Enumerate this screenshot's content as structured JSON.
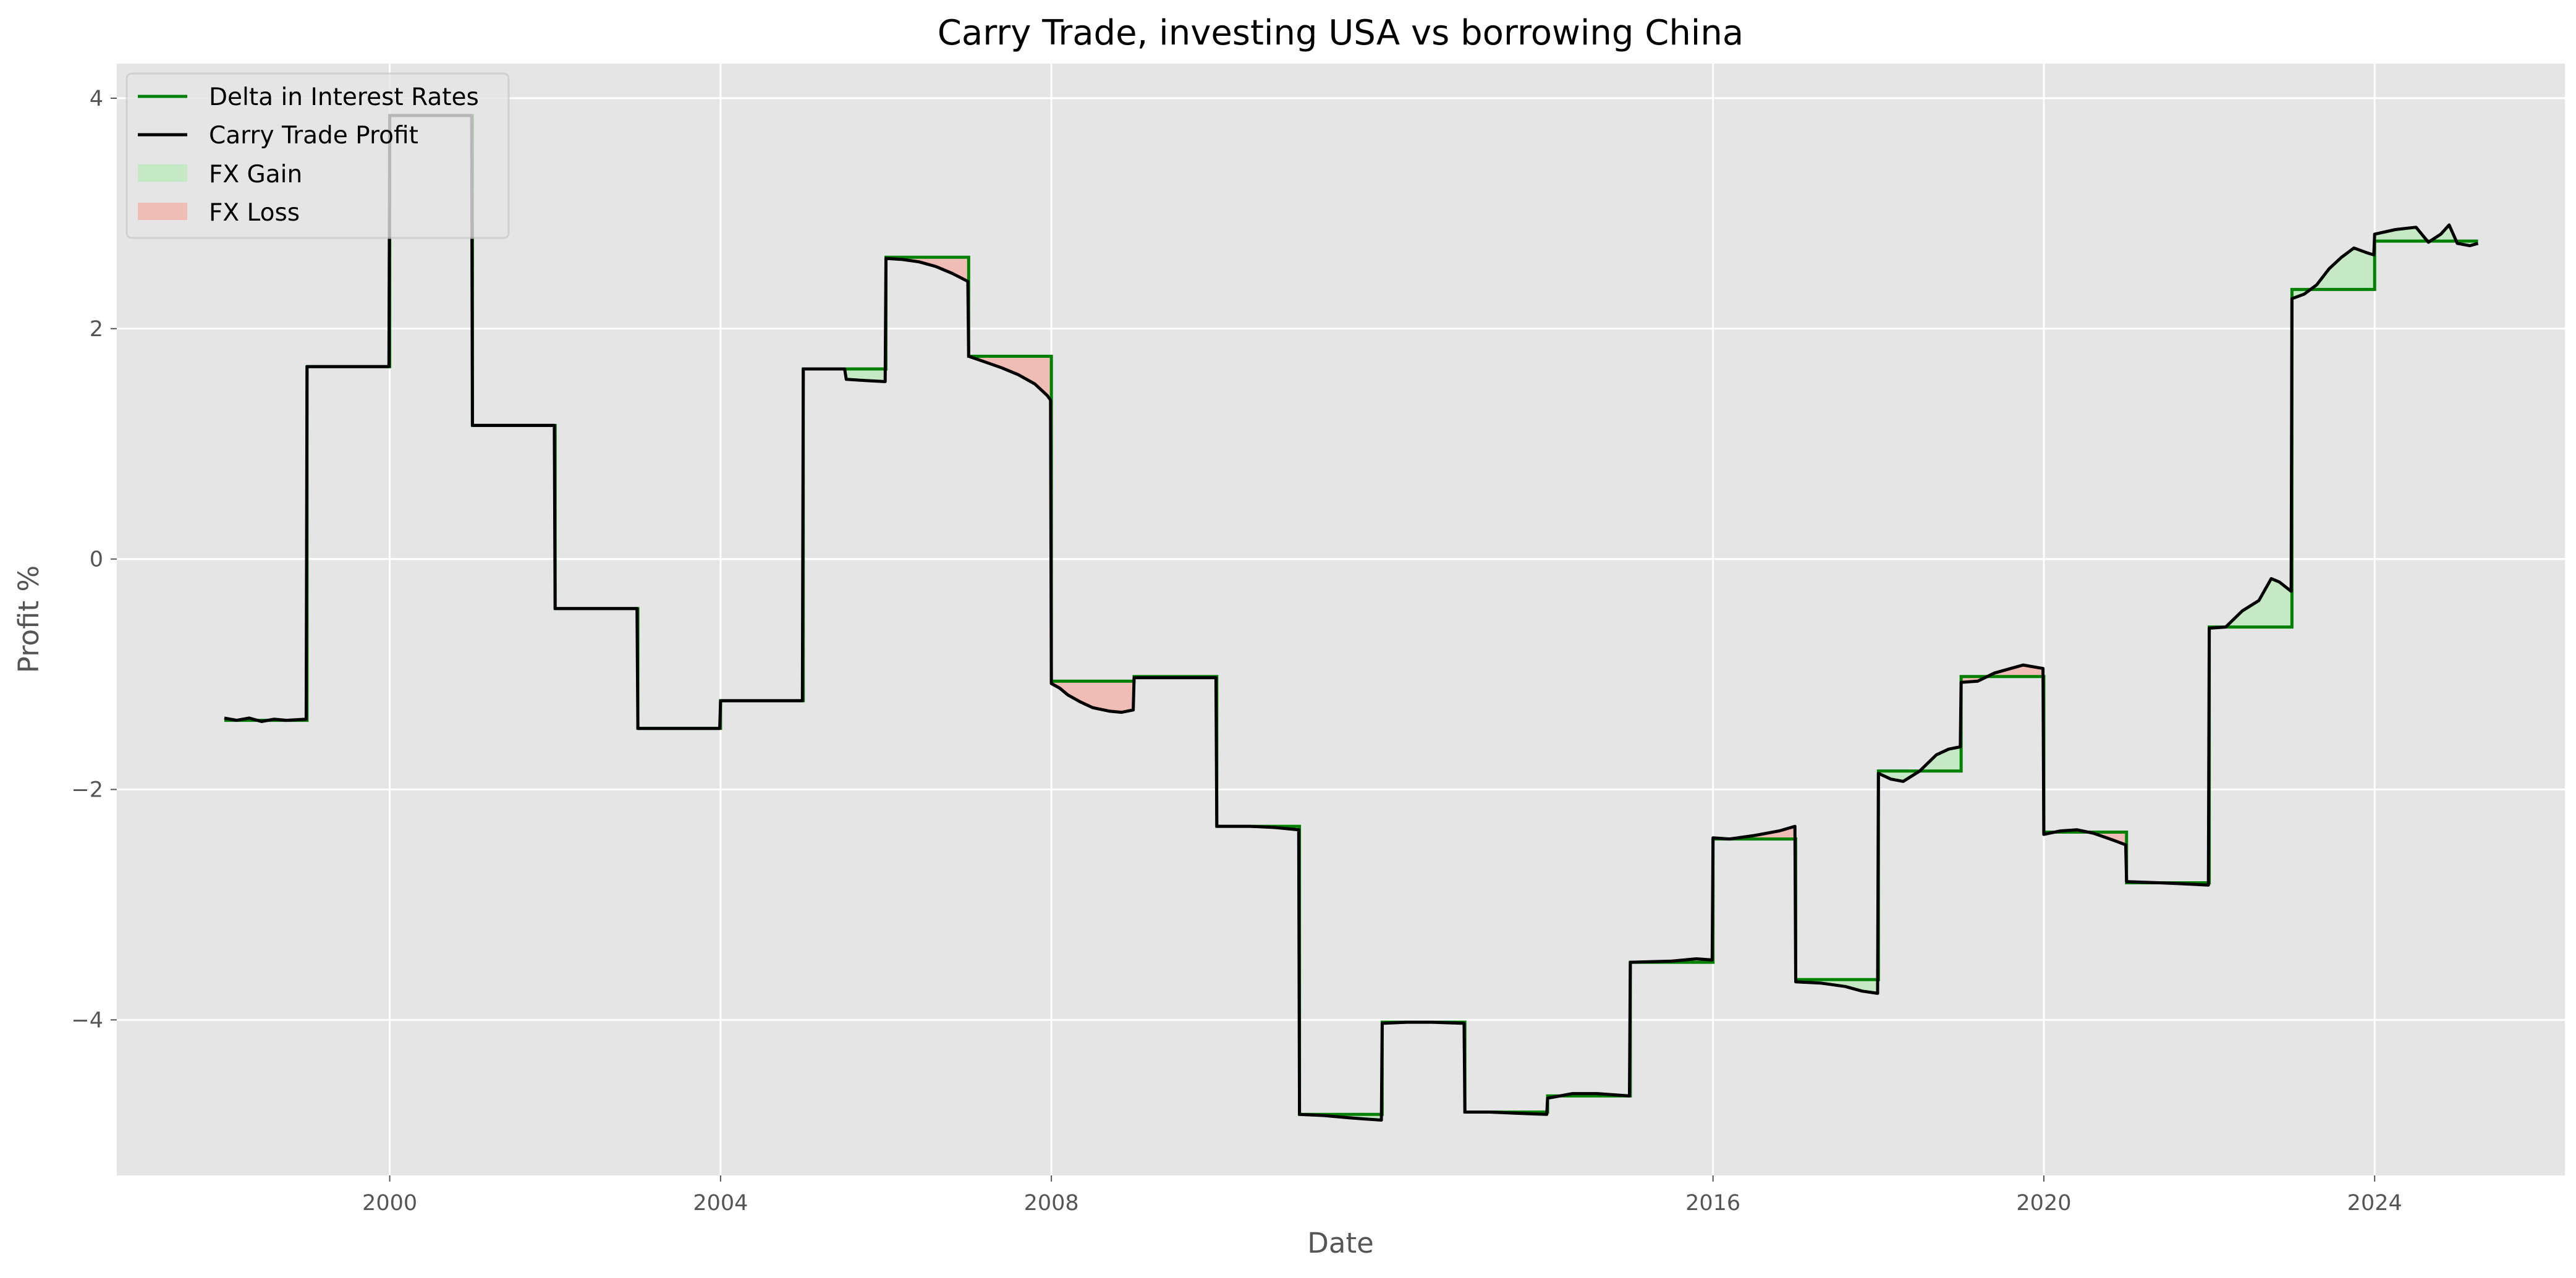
{
  "chart_data": {
    "type": "line",
    "title": "Carry Trade, investing USA vs borrowing China",
    "xlabel": "Date",
    "ylabel": "Profit %",
    "x_ticks": [
      "2000",
      "2004",
      "2008",
      "2016",
      "2020",
      "2024"
    ],
    "x_tick_years": [
      2000,
      2004,
      2008,
      2016,
      2020,
      2024
    ],
    "y_ticks": [
      "4",
      "2",
      "0",
      "−2",
      "−4"
    ],
    "y_tick_values": [
      4,
      2,
      0,
      -2,
      -4
    ],
    "xlim": [
      1996.7,
      2026.3
    ],
    "ylim": [
      -5.35,
      4.3
    ],
    "grid": true,
    "legend_position": "top-left",
    "colors": {
      "background": "#e5e5e5",
      "grid": "#ffffff",
      "delta_line": "#008000",
      "profit_line": "#000000",
      "fx_gain_fill": "#c5e9c5",
      "fx_loss_fill": "#f0bcb6"
    },
    "legend": [
      {
        "label": "Delta in Interest Rates",
        "kind": "line",
        "color_key": "delta_line"
      },
      {
        "label": "Carry Trade Profit",
        "kind": "line",
        "color_key": "profit_line"
      },
      {
        "label": "FX Gain",
        "kind": "patch",
        "color_key": "fx_gain_fill"
      },
      {
        "label": "FX Loss",
        "kind": "patch",
        "color_key": "fx_loss_fill"
      }
    ],
    "series": [
      {
        "name": "Delta in Interest Rates",
        "steps": [
          {
            "start": 1998,
            "end": 1999,
            "value": -1.4
          },
          {
            "start": 1999,
            "end": 2000,
            "value": 1.67
          },
          {
            "start": 2000,
            "end": 2001,
            "value": 3.85
          },
          {
            "start": 2001,
            "end": 2002,
            "value": 1.16
          },
          {
            "start": 2002,
            "end": 2003,
            "value": -0.43
          },
          {
            "start": 2003,
            "end": 2004,
            "value": -1.47
          },
          {
            "start": 2004,
            "end": 2005,
            "value": -1.23
          },
          {
            "start": 2005,
            "end": 2006,
            "value": 1.65
          },
          {
            "start": 2006,
            "end": 2007,
            "value": 2.62
          },
          {
            "start": 2007,
            "end": 2008,
            "value": 1.76
          },
          {
            "start": 2008,
            "end": 2009,
            "value": -1.06
          },
          {
            "start": 2009,
            "end": 2010,
            "value": -1.02
          },
          {
            "start": 2010,
            "end": 2011,
            "value": -2.32
          },
          {
            "start": 2011,
            "end": 2012,
            "value": -4.82
          },
          {
            "start": 2012,
            "end": 2013,
            "value": -4.02
          },
          {
            "start": 2013,
            "end": 2014,
            "value": -4.8
          },
          {
            "start": 2014,
            "end": 2015,
            "value": -4.66
          },
          {
            "start": 2015,
            "end": 2016,
            "value": -3.5
          },
          {
            "start": 2016,
            "end": 2017,
            "value": -2.43
          },
          {
            "start": 2017,
            "end": 2018,
            "value": -3.65
          },
          {
            "start": 2018,
            "end": 2019,
            "value": -1.84
          },
          {
            "start": 2019,
            "end": 2020,
            "value": -1.02
          },
          {
            "start": 2020,
            "end": 2021,
            "value": -2.37
          },
          {
            "start": 2021,
            "end": 2022,
            "value": -2.81
          },
          {
            "start": 2022,
            "end": 2023,
            "value": -0.59
          },
          {
            "start": 2023,
            "end": 2024,
            "value": 2.34
          },
          {
            "start": 2024,
            "end": 2025.25,
            "value": 2.76
          }
        ]
      },
      {
        "name": "Carry Trade Profit",
        "points": [
          [
            1998.0,
            -1.38
          ],
          [
            1998.15,
            -1.4
          ],
          [
            1998.3,
            -1.38
          ],
          [
            1998.45,
            -1.41
          ],
          [
            1998.6,
            -1.39
          ],
          [
            1998.75,
            -1.4
          ],
          [
            1998.99,
            -1.39
          ],
          [
            1999.0,
            1.67
          ],
          [
            1999.99,
            1.67
          ],
          [
            2000.0,
            3.85
          ],
          [
            2000.99,
            3.85
          ],
          [
            2001.0,
            1.16
          ],
          [
            2001.99,
            1.16
          ],
          [
            2002.0,
            -0.43
          ],
          [
            2002.99,
            -0.43
          ],
          [
            2003.0,
            -1.47
          ],
          [
            2003.99,
            -1.47
          ],
          [
            2004.0,
            -1.23
          ],
          [
            2004.99,
            -1.23
          ],
          [
            2005.0,
            1.65
          ],
          [
            2005.5,
            1.65
          ],
          [
            2005.52,
            1.56
          ],
          [
            2005.75,
            1.55
          ],
          [
            2005.99,
            1.54
          ],
          [
            2006.0,
            2.61
          ],
          [
            2006.2,
            2.6
          ],
          [
            2006.4,
            2.58
          ],
          [
            2006.6,
            2.54
          ],
          [
            2006.8,
            2.48
          ],
          [
            2006.99,
            2.41
          ],
          [
            2007.0,
            1.76
          ],
          [
            2007.2,
            1.71
          ],
          [
            2007.4,
            1.66
          ],
          [
            2007.6,
            1.6
          ],
          [
            2007.8,
            1.52
          ],
          [
            2007.95,
            1.42
          ],
          [
            2007.99,
            1.38
          ],
          [
            2008.0,
            -1.08
          ],
          [
            2008.1,
            -1.12
          ],
          [
            2008.2,
            -1.18
          ],
          [
            2008.35,
            -1.24
          ],
          [
            2008.5,
            -1.29
          ],
          [
            2008.7,
            -1.32
          ],
          [
            2008.85,
            -1.33
          ],
          [
            2008.99,
            -1.31
          ],
          [
            2009.0,
            -1.03
          ],
          [
            2009.99,
            -1.03
          ],
          [
            2010.0,
            -2.32
          ],
          [
            2010.4,
            -2.32
          ],
          [
            2010.7,
            -2.33
          ],
          [
            2010.99,
            -2.35
          ],
          [
            2011.0,
            -4.82
          ],
          [
            2011.3,
            -4.83
          ],
          [
            2011.6,
            -4.85
          ],
          [
            2011.8,
            -4.86
          ],
          [
            2011.99,
            -4.87
          ],
          [
            2012.0,
            -4.03
          ],
          [
            2012.3,
            -4.02
          ],
          [
            2012.6,
            -4.02
          ],
          [
            2012.99,
            -4.03
          ],
          [
            2013.0,
            -4.8
          ],
          [
            2013.3,
            -4.8
          ],
          [
            2013.6,
            -4.81
          ],
          [
            2013.99,
            -4.82
          ],
          [
            2014.0,
            -4.68
          ],
          [
            2014.3,
            -4.64
          ],
          [
            2014.6,
            -4.64
          ],
          [
            2014.99,
            -4.66
          ],
          [
            2015.0,
            -3.5
          ],
          [
            2015.5,
            -3.49
          ],
          [
            2015.8,
            -3.47
          ],
          [
            2015.99,
            -3.48
          ],
          [
            2016.0,
            -2.42
          ],
          [
            2016.2,
            -2.43
          ],
          [
            2016.5,
            -2.4
          ],
          [
            2016.8,
            -2.36
          ],
          [
            2016.99,
            -2.32
          ],
          [
            2017.0,
            -3.67
          ],
          [
            2017.3,
            -3.68
          ],
          [
            2017.6,
            -3.71
          ],
          [
            2017.8,
            -3.75
          ],
          [
            2017.99,
            -3.77
          ],
          [
            2018.0,
            -1.86
          ],
          [
            2018.15,
            -1.91
          ],
          [
            2018.3,
            -1.93
          ],
          [
            2018.5,
            -1.84
          ],
          [
            2018.7,
            -1.7
          ],
          [
            2018.85,
            -1.65
          ],
          [
            2018.99,
            -1.63
          ],
          [
            2019.0,
            -1.07
          ],
          [
            2019.2,
            -1.06
          ],
          [
            2019.4,
            -0.99
          ],
          [
            2019.6,
            -0.95
          ],
          [
            2019.75,
            -0.92
          ],
          [
            2019.99,
            -0.95
          ],
          [
            2020.0,
            -2.39
          ],
          [
            2020.2,
            -2.36
          ],
          [
            2020.4,
            -2.35
          ],
          [
            2020.6,
            -2.38
          ],
          [
            2020.8,
            -2.43
          ],
          [
            2020.99,
            -2.48
          ],
          [
            2021.0,
            -2.8
          ],
          [
            2021.4,
            -2.81
          ],
          [
            2021.7,
            -2.82
          ],
          [
            2021.99,
            -2.83
          ],
          [
            2022.0,
            -0.6
          ],
          [
            2022.2,
            -0.59
          ],
          [
            2022.4,
            -0.45
          ],
          [
            2022.6,
            -0.36
          ],
          [
            2022.75,
            -0.17
          ],
          [
            2022.85,
            -0.2
          ],
          [
            2022.99,
            -0.28
          ],
          [
            2023.0,
            2.26
          ],
          [
            2023.15,
            2.3
          ],
          [
            2023.3,
            2.38
          ],
          [
            2023.45,
            2.52
          ],
          [
            2023.6,
            2.62
          ],
          [
            2023.75,
            2.7
          ],
          [
            2023.9,
            2.66
          ],
          [
            2023.99,
            2.64
          ],
          [
            2024.0,
            2.82
          ],
          [
            2024.25,
            2.86
          ],
          [
            2024.5,
            2.88
          ],
          [
            2024.65,
            2.75
          ],
          [
            2024.8,
            2.82
          ],
          [
            2024.9,
            2.9
          ],
          [
            2025.0,
            2.74
          ],
          [
            2025.15,
            2.72
          ],
          [
            2025.25,
            2.74
          ]
        ]
      }
    ]
  }
}
